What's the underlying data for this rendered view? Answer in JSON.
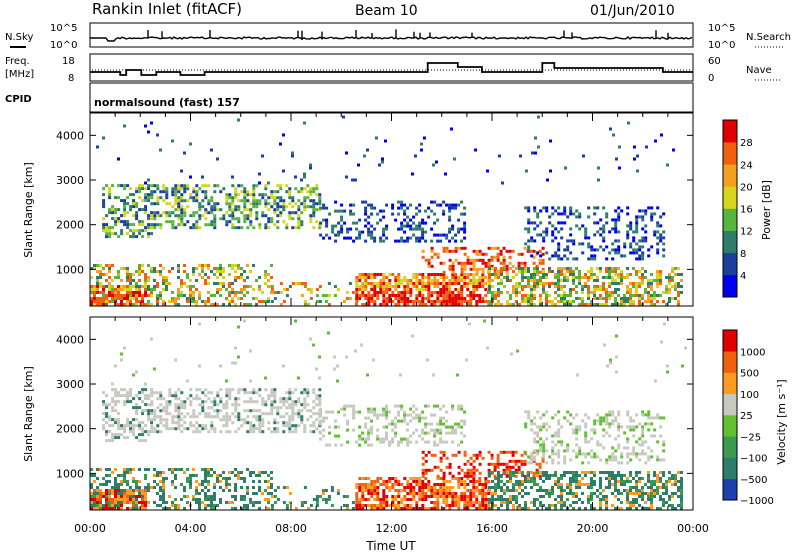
{
  "header": {
    "title": "Rankin Inlet (fitACF)",
    "beam": "Beam 10",
    "date": "01/Jun/2010"
  },
  "noise_panel": {
    "left_label": "N.Sky",
    "right_label": "N.Search",
    "ticks_left": [
      "10^5",
      "10^0"
    ],
    "ticks_right": [
      "10^5",
      "10^0"
    ]
  },
  "freq_panel": {
    "left_label_1": "Freq.",
    "left_label_2": "[MHz]",
    "right_label": "Nave",
    "ticks_left": [
      "18",
      "8"
    ],
    "ticks_right": [
      "60",
      "0"
    ]
  },
  "cpid_panel": {
    "label": "CPID",
    "text": "normalsound (fast) 157"
  },
  "chart_data": [
    {
      "type": "heatmap",
      "name": "power",
      "ylabel": "Slant Range [km]",
      "ylim": [
        180,
        4500
      ],
      "y_ticks": [
        "1000",
        "2000",
        "3000",
        "4000"
      ],
      "colorbar_label": "Power [dB]",
      "colorbar_ticks": [
        "28",
        "24",
        "20",
        "16",
        "12",
        "8",
        "4"
      ],
      "colors": [
        "#0000ee",
        "#1a3f9e",
        "#2e7d6a",
        "#58b43c",
        "#d6d61e",
        "#f5a020",
        "#f06010",
        "#e00000"
      ]
    },
    {
      "type": "heatmap",
      "name": "velocity",
      "ylabel": "Slant Range [km]",
      "ylim": [
        180,
        4500
      ],
      "y_ticks": [
        "1000",
        "2000",
        "3000",
        "4000"
      ],
      "colorbar_label": "Velocity [m s⁻¹]",
      "colorbar_ticks": [
        "1000",
        "500",
        "100",
        "25",
        "−25",
        "−100",
        "−500",
        "−1000"
      ],
      "colors": [
        "#2040b0",
        "#2e7d6a",
        "#3a9a50",
        "#60c030",
        "#c8c8c0",
        "#ff9a20",
        "#f06010",
        "#e00000"
      ]
    }
  ],
  "x_axis": {
    "ticks": [
      "00:00",
      "04:00",
      "08:00",
      "12:00",
      "16:00",
      "20:00",
      "00:00"
    ],
    "label": "Time UT"
  }
}
